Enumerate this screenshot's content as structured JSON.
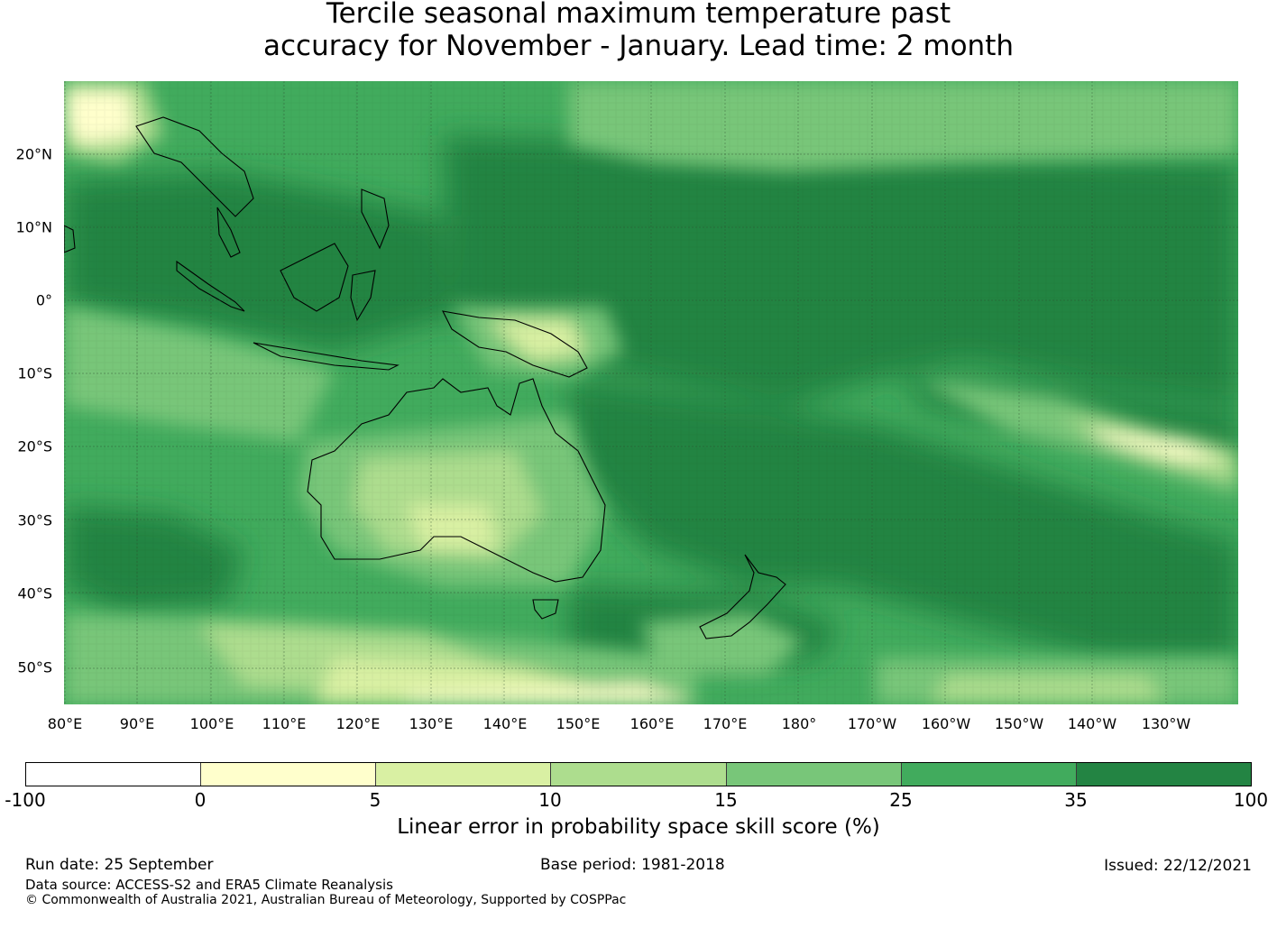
{
  "title": {
    "line1": "Tercile seasonal maximum temperature past",
    "line2": "accuracy for November - January. Lead time: 2 month"
  },
  "map": {
    "longitude_ticks": [
      "80°E",
      "90°E",
      "100°E",
      "110°E",
      "120°E",
      "130°E",
      "140°E",
      "150°E",
      "160°E",
      "170°E",
      "180°",
      "170°W",
      "160°W",
      "150°W",
      "140°W",
      "130°W"
    ],
    "latitude_ticks": [
      "20°N",
      "10°N",
      "0°",
      "10°S",
      "20°S",
      "30°S",
      "40°S",
      "50°S"
    ],
    "region": {
      "lon_min": 80,
      "lon_max": 240,
      "lat_min": -55,
      "lat_max": 30
    },
    "gridlines": true,
    "coastlines": true
  },
  "colorbar": {
    "boundaries": [
      "-100",
      "0",
      "5",
      "10",
      "15",
      "25",
      "35",
      "100"
    ],
    "colors": [
      "#ffffff",
      "#ffffcc",
      "#d9f0a3",
      "#addd8e",
      "#78c679",
      "#41ab5d",
      "#238443"
    ],
    "label": "Linear error in probability space skill score (%)"
  },
  "footer": {
    "run_date": "Run date: 25 September",
    "base_period": "Base period: 1981-2018",
    "issued": "Issued: 22/12/2021",
    "data_source": "Data source: ACCESS-S2 and ERA5 Climate Reanalysis",
    "copyright": "© Commonwealth of Australia 2021, Australian Bureau of Meteorology, Supported by COSPPac"
  }
}
